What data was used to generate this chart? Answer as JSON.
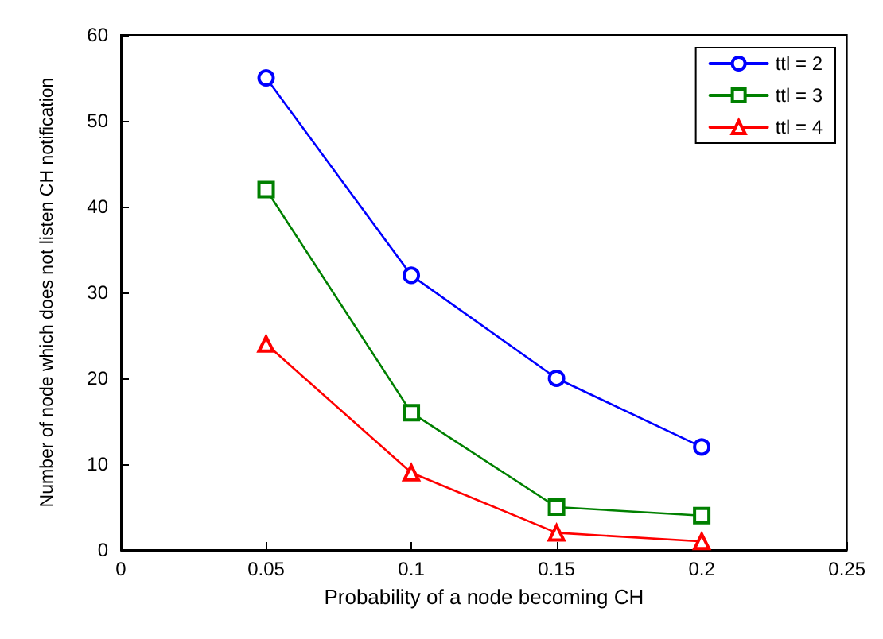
{
  "chart_data": {
    "type": "line",
    "xlabel": "Probability of a node becoming CH",
    "ylabel": "Number of node which does not listen CH notification",
    "x": [
      0.05,
      0.1,
      0.15,
      0.2
    ],
    "series": [
      {
        "name": "ttl = 2",
        "color": "#0000ff",
        "marker": "circle",
        "values": [
          55,
          32,
          20,
          12
        ]
      },
      {
        "name": "ttl = 3",
        "color": "#008000",
        "marker": "square",
        "values": [
          42,
          16,
          5,
          4
        ]
      },
      {
        "name": "ttl = 4",
        "color": "#ff0000",
        "marker": "triangle",
        "values": [
          24,
          9,
          2,
          1
        ]
      }
    ],
    "xlim": [
      0,
      0.25
    ],
    "xticks": [
      0,
      0.05,
      0.1,
      0.15,
      0.2,
      0.25
    ],
    "ylim": [
      0,
      60
    ],
    "yticks": [
      0,
      10,
      20,
      30,
      40,
      50,
      60
    ],
    "grid": false,
    "legend": "top right",
    "line_style": "solid"
  }
}
